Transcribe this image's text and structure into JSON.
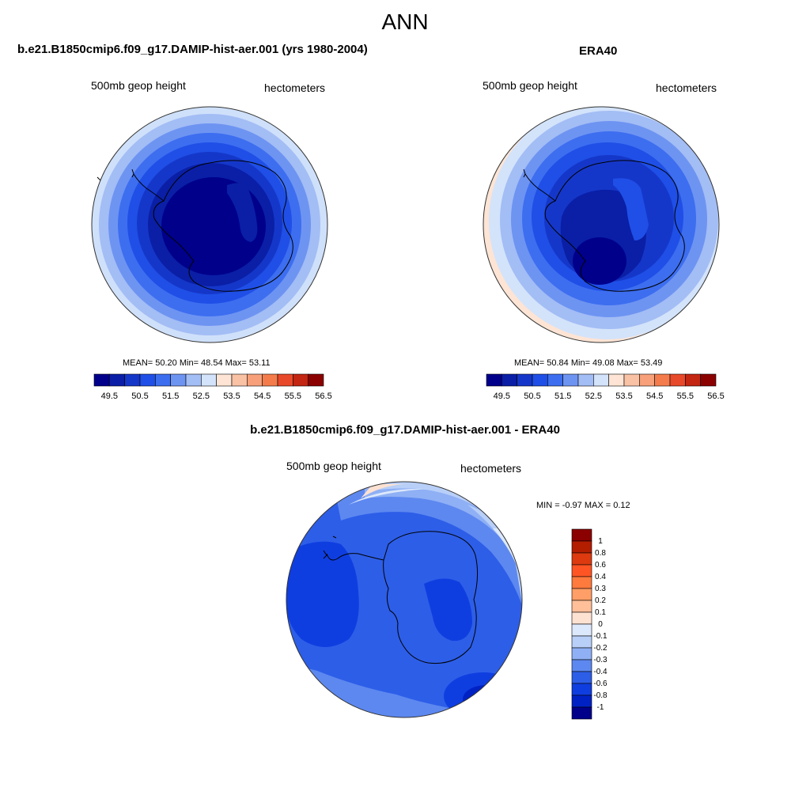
{
  "main_title": "ANN",
  "panels": [
    {
      "title": "b.e21.B1850cmip6.f09_g17.DAMIP-hist-aer.001 (yrs 1980-2004)",
      "left_label": "500mb geop height",
      "right_label": "hectometers",
      "stats": "MEAN=  50.20  Min=  48.54  Max=  53.11",
      "mean": 50.2,
      "min": 48.54,
      "max": 53.11
    },
    {
      "title": "ERA40",
      "left_label": "500mb geop height",
      "right_label": "hectometers",
      "stats": "MEAN=  50.84  Min=  49.08  Max=  53.49",
      "mean": 50.84,
      "min": 49.08,
      "max": 53.49
    },
    {
      "title": "b.e21.B1850cmip6.f09_g17.DAMIP-hist-aer.001 - ERA40",
      "left_label": "500mb geop height",
      "right_label": "hectometers",
      "stats": "MIN =  -0.97 MAX =   0.12",
      "min": -0.97,
      "max": 0.12
    }
  ],
  "colorbar_abs": {
    "colors": [
      "#00008b",
      "#0a1fa6",
      "#1537c9",
      "#1f4fe6",
      "#3d6ef0",
      "#6e94f2",
      "#a3bdf5",
      "#d3e3fa",
      "#fde4d4",
      "#f9c2a5",
      "#f7a07a",
      "#f47c4c",
      "#e8492a",
      "#c32612",
      "#8b0000"
    ],
    "tick_labels": [
      "49.5",
      "50.5",
      "51.5",
      "52.5",
      "53.5",
      "54.5",
      "55.5",
      "56.5"
    ]
  },
  "colorbar_diff": {
    "colors": [
      "#8b0000",
      "#b31d00",
      "#dd3a0f",
      "#ff5524",
      "#ff7a3d",
      "#ff9e66",
      "#ffbf99",
      "#fde2d2",
      "#dce8fb",
      "#b8cff8",
      "#8fb0f5",
      "#5d88f0",
      "#2d5ee8",
      "#0f3ee0",
      "#0022c4",
      "#00008b"
    ],
    "tick_labels": [
      "1",
      "0.8",
      "0.6",
      "0.4",
      "0.3",
      "0.2",
      "0.1",
      "0",
      "-0.1",
      "-0.2",
      "-0.3",
      "-0.4",
      "-0.6",
      "-0.8",
      "-1"
    ]
  }
}
